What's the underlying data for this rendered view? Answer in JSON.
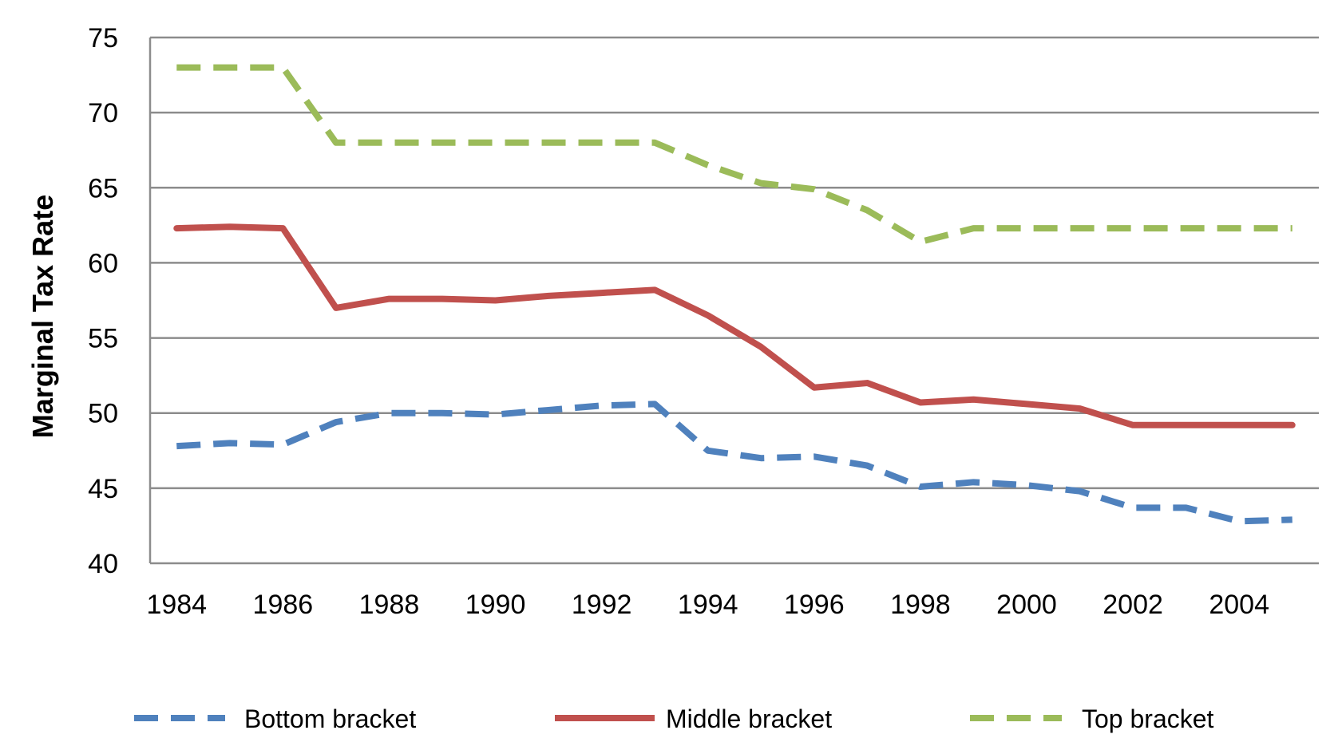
{
  "chart_data": {
    "type": "line",
    "ylabel": "Marginal Tax Rate",
    "xlabel": "",
    "title": "",
    "x": [
      1984,
      1985,
      1986,
      1987,
      1988,
      1989,
      1990,
      1991,
      1992,
      1993,
      1994,
      1995,
      1996,
      1997,
      1998,
      1999,
      2000,
      2001,
      2002,
      2003,
      2004,
      2005
    ],
    "xlim": [
      1983.5,
      2005.5
    ],
    "xticks": [
      1984,
      1986,
      1988,
      1990,
      1992,
      1994,
      1996,
      1998,
      2000,
      2002,
      2004
    ],
    "xtick_labels": [
      "1984",
      "1986",
      "1988",
      "1990",
      "1992",
      "1994",
      "1996",
      "1998",
      "2000",
      "2002",
      "2004"
    ],
    "ylim": [
      40,
      75
    ],
    "yticks": [
      40,
      45,
      50,
      55,
      60,
      65,
      70,
      75
    ],
    "ytick_labels": [
      "40",
      "45",
      "50",
      "55",
      "60",
      "65",
      "70",
      "75"
    ],
    "grid": "horizontal",
    "legend_position": "bottom",
    "series": [
      {
        "name": "Bottom bracket",
        "style": "dashed",
        "color": "#4f81bd",
        "values": [
          47.8,
          48.0,
          47.9,
          49.4,
          50.0,
          50.0,
          49.9,
          50.2,
          50.5,
          50.6,
          47.5,
          47.0,
          47.1,
          46.5,
          45.1,
          45.4,
          45.2,
          44.8,
          43.7,
          43.7,
          42.8,
          42.9
        ]
      },
      {
        "name": "Middle bracket",
        "style": "solid",
        "color": "#c0504d",
        "values": [
          62.3,
          62.4,
          62.3,
          57.0,
          57.6,
          57.6,
          57.5,
          57.8,
          58.0,
          58.2,
          56.5,
          54.4,
          51.7,
          52.0,
          50.7,
          50.9,
          50.6,
          50.3,
          49.2,
          49.2,
          49.2,
          49.2
        ]
      },
      {
        "name": "Top bracket",
        "style": "dashed",
        "color": "#9bbb59",
        "values": [
          73.0,
          73.0,
          73.0,
          68.0,
          68.0,
          68.0,
          68.0,
          68.0,
          68.0,
          68.0,
          66.5,
          65.3,
          64.9,
          63.5,
          61.4,
          62.3,
          62.3,
          62.3,
          62.3,
          62.3,
          62.3,
          62.3
        ]
      }
    ]
  }
}
